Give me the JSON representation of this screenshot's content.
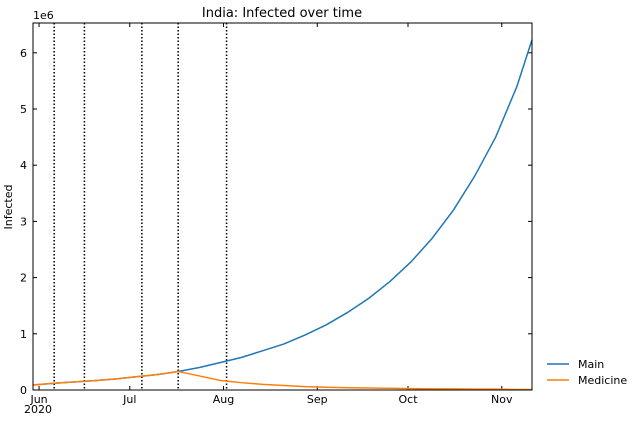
{
  "chart_data": {
    "type": "line",
    "title": "India: Infected over time",
    "ylabel": "Infected",
    "offset_label": "1e6",
    "year_label": "2020",
    "x": [
      "2020-05-30",
      "2020-06-06",
      "2020-06-13",
      "2020-06-20",
      "2020-06-27",
      "2020-07-04",
      "2020-07-11",
      "2020-07-17",
      "2020-07-24",
      "2020-07-31",
      "2020-08-07",
      "2020-08-14",
      "2020-08-21",
      "2020-08-28",
      "2020-09-04",
      "2020-09-11",
      "2020-09-18",
      "2020-09-25",
      "2020-10-02",
      "2020-10-09",
      "2020-10-16",
      "2020-10-23",
      "2020-10-30",
      "2020-11-06",
      "2020-11-11"
    ],
    "series": [
      {
        "name": "Main",
        "color": "#1f77b4",
        "values": [
          0.09,
          0.12,
          0.145,
          0.17,
          0.2,
          0.24,
          0.28,
          0.33,
          0.4,
          0.49,
          0.58,
          0.7,
          0.82,
          0.98,
          1.16,
          1.38,
          1.63,
          1.93,
          2.28,
          2.7,
          3.2,
          3.8,
          4.5,
          5.4,
          6.23
        ]
      },
      {
        "name": "Medicine",
        "color": "#ff7f0e",
        "values": [
          0.09,
          0.12,
          0.145,
          0.17,
          0.2,
          0.24,
          0.28,
          0.33,
          0.25,
          0.17,
          0.13,
          0.1,
          0.08,
          0.06,
          0.05,
          0.04,
          0.035,
          0.03,
          0.025,
          0.02,
          0.02,
          0.015,
          0.015,
          0.01,
          0.01
        ]
      }
    ],
    "vlines": [
      "2020-06-06",
      "2020-06-16",
      "2020-07-05",
      "2020-07-17",
      "2020-08-02"
    ],
    "xlim": [
      "2020-05-30",
      "2020-11-11"
    ],
    "xticks": [
      {
        "value": "2020-06-01",
        "label": "Jun"
      },
      {
        "value": "2020-07-01",
        "label": "Jul"
      },
      {
        "value": "2020-08-01",
        "label": "Aug"
      },
      {
        "value": "2020-09-01",
        "label": "Sep"
      },
      {
        "value": "2020-10-01",
        "label": "Oct"
      },
      {
        "value": "2020-11-01",
        "label": "Nov"
      }
    ],
    "ylim": [
      0,
      6.53
    ],
    "yticks": [
      0,
      1,
      2,
      3,
      4,
      5,
      6
    ],
    "grid": false,
    "legend": "outside-right-bottom"
  }
}
